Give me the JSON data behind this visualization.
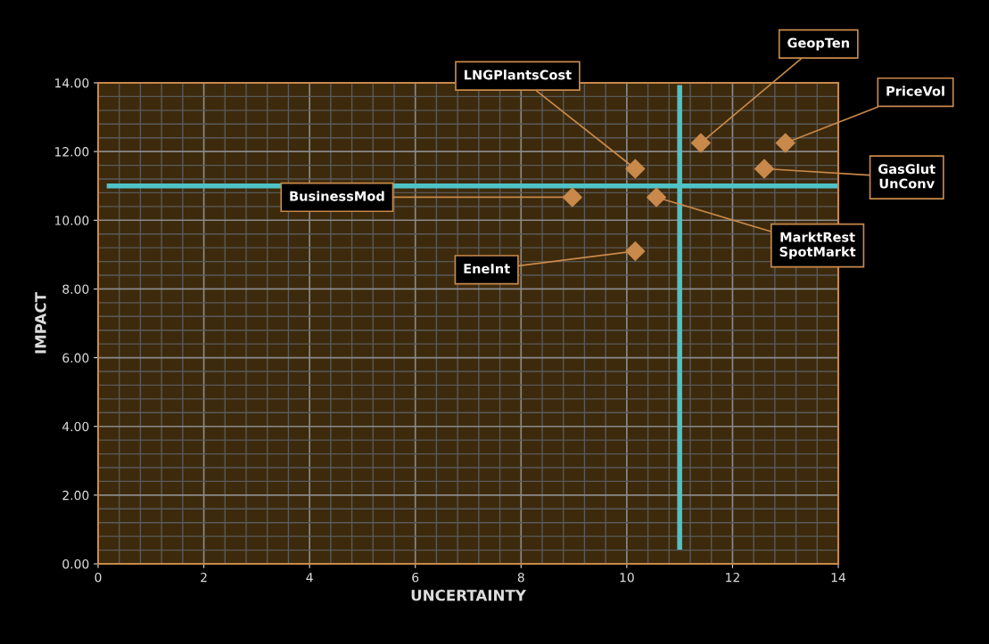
{
  "chart_data": {
    "type": "scatter",
    "xlabel": "UNCERTAINTY",
    "ylabel": "IMPACT",
    "x": [
      11.4,
      13.0,
      10.16,
      12.6,
      8.97,
      10.56,
      10.16
    ],
    "series": [
      {
        "color": "#c8894a",
        "values": [
          12.25,
          12.25,
          11.5,
          11.5,
          10.67,
          10.67,
          9.1
        ]
      }
    ],
    "marker": "diamond",
    "xlim": [
      0,
      14
    ],
    "xticks": [
      0,
      2,
      4,
      6,
      8,
      10,
      12,
      14
    ],
    "ylim": [
      0,
      14
    ],
    "yticks": [
      {
        "value": 0,
        "label": "0.00"
      },
      {
        "value": 2,
        "label": "2.00"
      },
      {
        "value": 4,
        "label": "4.00"
      },
      {
        "value": 6,
        "label": "6.00"
      },
      {
        "value": 8,
        "label": "8.00"
      },
      {
        "value": 10,
        "label": "10.00"
      },
      {
        "value": 12,
        "label": "12.00"
      },
      {
        "value": 14,
        "label": "14.00"
      }
    ],
    "grid": true,
    "ref_lines": [
      {
        "axis": "y",
        "value": 11,
        "color": "#4fc3c8"
      },
      {
        "axis": "x",
        "value": 11,
        "color": "#4fc3c8"
      }
    ],
    "annotations": [
      {
        "text": "GeopTen",
        "x": 11.4,
        "y": 12.25
      },
      {
        "text": "PriceVol",
        "x": 13.0,
        "y": 12.25
      },
      {
        "text": "LNGPlantsCost",
        "x": 10.16,
        "y": 11.5
      },
      {
        "text": "GasGlut\nUnConv",
        "x": 12.6,
        "y": 11.5
      },
      {
        "text": "BusinessMod",
        "x": 8.97,
        "y": 10.67
      },
      {
        "text": "MarktRest\nSpotMarkt",
        "x": 10.56,
        "y": 10.67
      },
      {
        "text": "EneInt",
        "x": 10.16,
        "y": 9.1
      }
    ]
  }
}
